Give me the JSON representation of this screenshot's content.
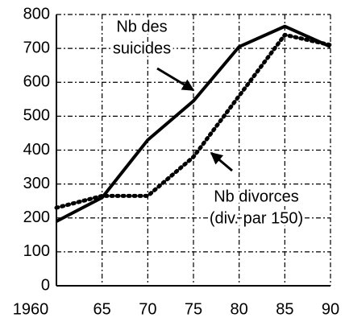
{
  "chart_data": {
    "type": "line",
    "categories": [
      "1960",
      "65",
      "70",
      "75",
      "80",
      "85",
      "90"
    ],
    "series": [
      {
        "name": "Nb des suicides",
        "color": "#000000",
        "style": "solid",
        "values": [
          190,
          260,
          430,
          545,
          705,
          765,
          705
        ]
      },
      {
        "name": "Nb divorces (div. par 150)",
        "color": "#000000",
        "style": "dotted",
        "values": [
          230,
          265,
          265,
          380,
          560,
          740,
          710
        ]
      }
    ],
    "annotations": [
      {
        "lines": [
          "Nb des",
          "suicides"
        ],
        "series": 0
      },
      {
        "lines": [
          "Nb divorces",
          "(div. par 150)"
        ],
        "series": 1
      }
    ],
    "ylim": [
      0,
      800
    ],
    "yticks": [
      0,
      100,
      200,
      300,
      400,
      500,
      600,
      700,
      800
    ],
    "grid": true
  }
}
